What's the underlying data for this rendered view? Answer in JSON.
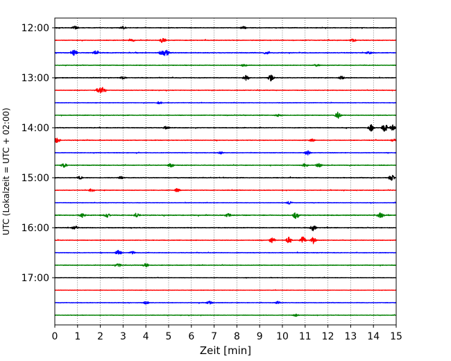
{
  "chart_data": {
    "type": "line",
    "title": "",
    "xlabel": "Zeit  [min]",
    "ylabel": "UTC (Lokalzeit = UTC + 02:00)",
    "xlim": [
      0,
      15
    ],
    "x_ticks": [
      0,
      1,
      2,
      3,
      4,
      5,
      6,
      7,
      8,
      9,
      10,
      11,
      12,
      13,
      14,
      15
    ],
    "x_tick_labels": [
      "0",
      "1",
      "2",
      "3",
      "4",
      "5",
      "6",
      "7",
      "8",
      "9",
      "10",
      "11",
      "12",
      "13",
      "14",
      "15"
    ],
    "y_ticks": [
      {
        "label": "12:00",
        "trace_index": 0
      },
      {
        "label": "13:00",
        "trace_index": 4
      },
      {
        "label": "14:00",
        "trace_index": 8
      },
      {
        "label": "15:00",
        "trace_index": 12
      },
      {
        "label": "16:00",
        "trace_index": 16
      },
      {
        "label": "17:00",
        "trace_index": 20
      }
    ],
    "grid": {
      "x": true,
      "y": false,
      "style": "dotted"
    },
    "colors": [
      "#000000",
      "#ff0000",
      "#0000ff",
      "#008000"
    ],
    "series": [
      {
        "start": "12:00",
        "color": "#000000",
        "noise": 0.3,
        "bursts": [
          [
            0.9,
            0.9
          ],
          [
            3.0,
            0.6
          ],
          [
            8.3,
            0.6
          ]
        ]
      },
      {
        "start": "12:15",
        "color": "#ff0000",
        "noise": 0.28,
        "bursts": [
          [
            4.75,
            1.3
          ],
          [
            3.4,
            0.6
          ],
          [
            13.1,
            0.6
          ]
        ]
      },
      {
        "start": "12:30",
        "color": "#0000ff",
        "noise": 0.35,
        "bursts": [
          [
            0.85,
            1.4
          ],
          [
            1.8,
            0.8
          ],
          [
            4.9,
            1.4
          ],
          [
            4.7,
            1.0
          ],
          [
            9.3,
            0.6
          ],
          [
            13.8,
            0.6
          ]
        ]
      },
      {
        "start": "12:45",
        "color": "#008000",
        "noise": 0.28,
        "bursts": [
          [
            8.3,
            0.6
          ],
          [
            11.5,
            0.5
          ]
        ]
      },
      {
        "start": "13:00",
        "color": "#000000",
        "noise": 0.3,
        "bursts": [
          [
            8.4,
            1.1
          ],
          [
            9.5,
            1.6
          ],
          [
            12.6,
            0.8
          ],
          [
            3.0,
            0.6
          ]
        ]
      },
      {
        "start": "13:15",
        "color": "#ff0000",
        "noise": 0.25,
        "bursts": [
          [
            2.1,
            1.4
          ],
          [
            1.9,
            0.9
          ]
        ]
      },
      {
        "start": "13:30",
        "color": "#0000ff",
        "noise": 0.22,
        "bursts": [
          [
            4.6,
            0.6
          ]
        ]
      },
      {
        "start": "13:45",
        "color": "#008000",
        "noise": 0.28,
        "bursts": [
          [
            12.45,
            1.5
          ],
          [
            9.8,
            0.6
          ]
        ]
      },
      {
        "start": "14:00",
        "color": "#000000",
        "noise": 0.3,
        "bursts": [
          [
            13.9,
            1.5
          ],
          [
            14.5,
            2.0
          ],
          [
            14.85,
            1.4
          ],
          [
            4.9,
            0.7
          ]
        ]
      },
      {
        "start": "14:15",
        "color": "#ff0000",
        "noise": 0.28,
        "bursts": [
          [
            0.1,
            1.2
          ],
          [
            11.3,
            0.6
          ],
          [
            14.9,
            0.6
          ]
        ]
      },
      {
        "start": "14:30",
        "color": "#0000ff",
        "noise": 0.25,
        "bursts": [
          [
            11.1,
            1.1
          ],
          [
            7.3,
            0.5
          ]
        ]
      },
      {
        "start": "14:45",
        "color": "#008000",
        "noise": 0.28,
        "bursts": [
          [
            0.4,
            0.9
          ],
          [
            5.1,
            0.9
          ],
          [
            11.0,
            0.9
          ],
          [
            11.6,
            0.9
          ]
        ]
      },
      {
        "start": "15:00",
        "color": "#000000",
        "noise": 0.3,
        "bursts": [
          [
            14.8,
            1.3
          ],
          [
            2.9,
            0.7
          ],
          [
            1.1,
            0.6
          ]
        ]
      },
      {
        "start": "15:15",
        "color": "#ff0000",
        "noise": 0.26,
        "bursts": [
          [
            5.4,
            1.0
          ],
          [
            1.6,
            0.7
          ]
        ]
      },
      {
        "start": "15:30",
        "color": "#0000ff",
        "noise": 0.22,
        "bursts": [
          [
            10.3,
            0.6
          ]
        ]
      },
      {
        "start": "15:45",
        "color": "#008000",
        "noise": 0.38,
        "bursts": [
          [
            10.6,
            1.6
          ],
          [
            14.3,
            1.4
          ],
          [
            1.2,
            0.9
          ],
          [
            2.3,
            0.9
          ],
          [
            3.6,
            0.9
          ],
          [
            7.6,
            0.7
          ]
        ]
      },
      {
        "start": "16:00",
        "color": "#000000",
        "noise": 0.32,
        "bursts": [
          [
            11.35,
            1.3
          ],
          [
            0.9,
            0.8
          ]
        ]
      },
      {
        "start": "16:15",
        "color": "#ff0000",
        "noise": 0.26,
        "bursts": [
          [
            9.55,
            1.6
          ],
          [
            10.3,
            1.6
          ],
          [
            10.9,
            1.6
          ],
          [
            11.35,
            1.4
          ]
        ]
      },
      {
        "start": "16:30",
        "color": "#0000ff",
        "noise": 0.26,
        "bursts": [
          [
            2.8,
            1.2
          ],
          [
            3.4,
            0.6
          ]
        ]
      },
      {
        "start": "16:45",
        "color": "#008000",
        "noise": 0.28,
        "bursts": [
          [
            2.8,
            0.8
          ],
          [
            4.0,
            0.8
          ]
        ]
      },
      {
        "start": "17:00",
        "color": "#000000",
        "noise": 0.2,
        "bursts": []
      },
      {
        "start": "17:15",
        "color": "#ff0000",
        "noise": 0.18,
        "bursts": []
      },
      {
        "start": "17:30",
        "color": "#0000ff",
        "noise": 0.24,
        "bursts": [
          [
            4.0,
            0.6
          ],
          [
            6.8,
            0.6
          ],
          [
            9.8,
            0.6
          ]
        ]
      },
      {
        "start": "17:45",
        "color": "#008000",
        "noise": 0.22,
        "bursts": [
          [
            10.6,
            0.5
          ]
        ]
      }
    ]
  }
}
